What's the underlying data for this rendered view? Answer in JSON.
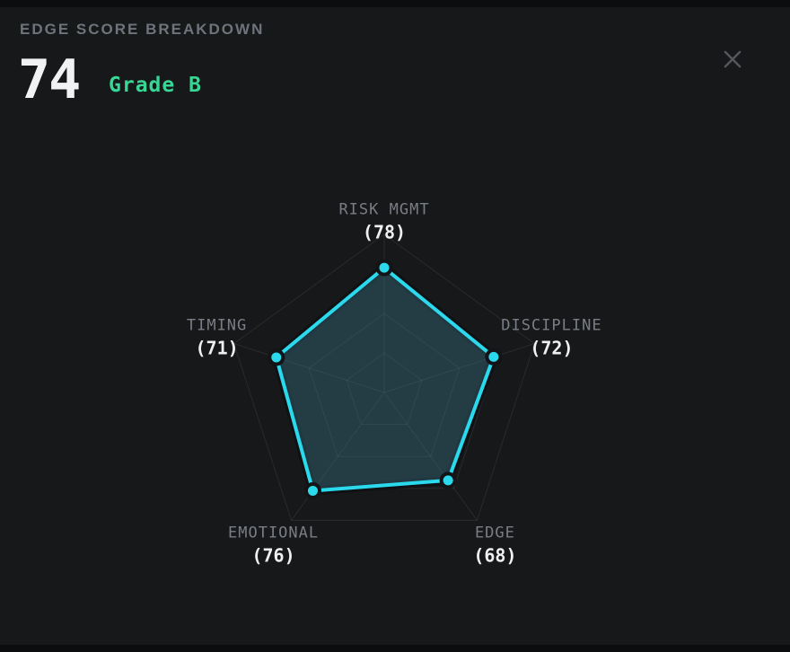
{
  "header": {
    "title": "EDGE SCORE BREAKDOWN",
    "score": "74",
    "grade": "Grade B"
  },
  "close_button": {
    "icon": "x-close-icon"
  },
  "colors": {
    "accent_cyan": "#2bd9ec",
    "grade_green": "#38d695",
    "panel_bg": "#17181a",
    "frame_bg": "#0c0d0e",
    "axis_label_gray": "#7a7d85",
    "axis_value_white": "#eef0f2",
    "grid_line": "rgba(255,255,255,0.08)",
    "radar_fill": "rgba(60,130,150,0.35)",
    "stroke_casing": "#101114",
    "dot_casing": "#131417"
  },
  "chart_data": {
    "type": "radar",
    "title": "EDGE SCORE BREAKDOWN",
    "categories": [
      "RISK MGMT",
      "DISCIPLINE",
      "EDGE",
      "EMOTIONAL",
      "TIMING"
    ],
    "values": [
      78,
      72,
      68,
      76,
      71
    ],
    "max": 100,
    "ring_levels_pct": [
      25,
      50,
      75,
      100
    ],
    "start_axis": "top",
    "direction": "clockwise",
    "label_format": "CATEGORY (VALUE)",
    "grid": true,
    "legend": false,
    "axis_tick_numbers": false
  }
}
